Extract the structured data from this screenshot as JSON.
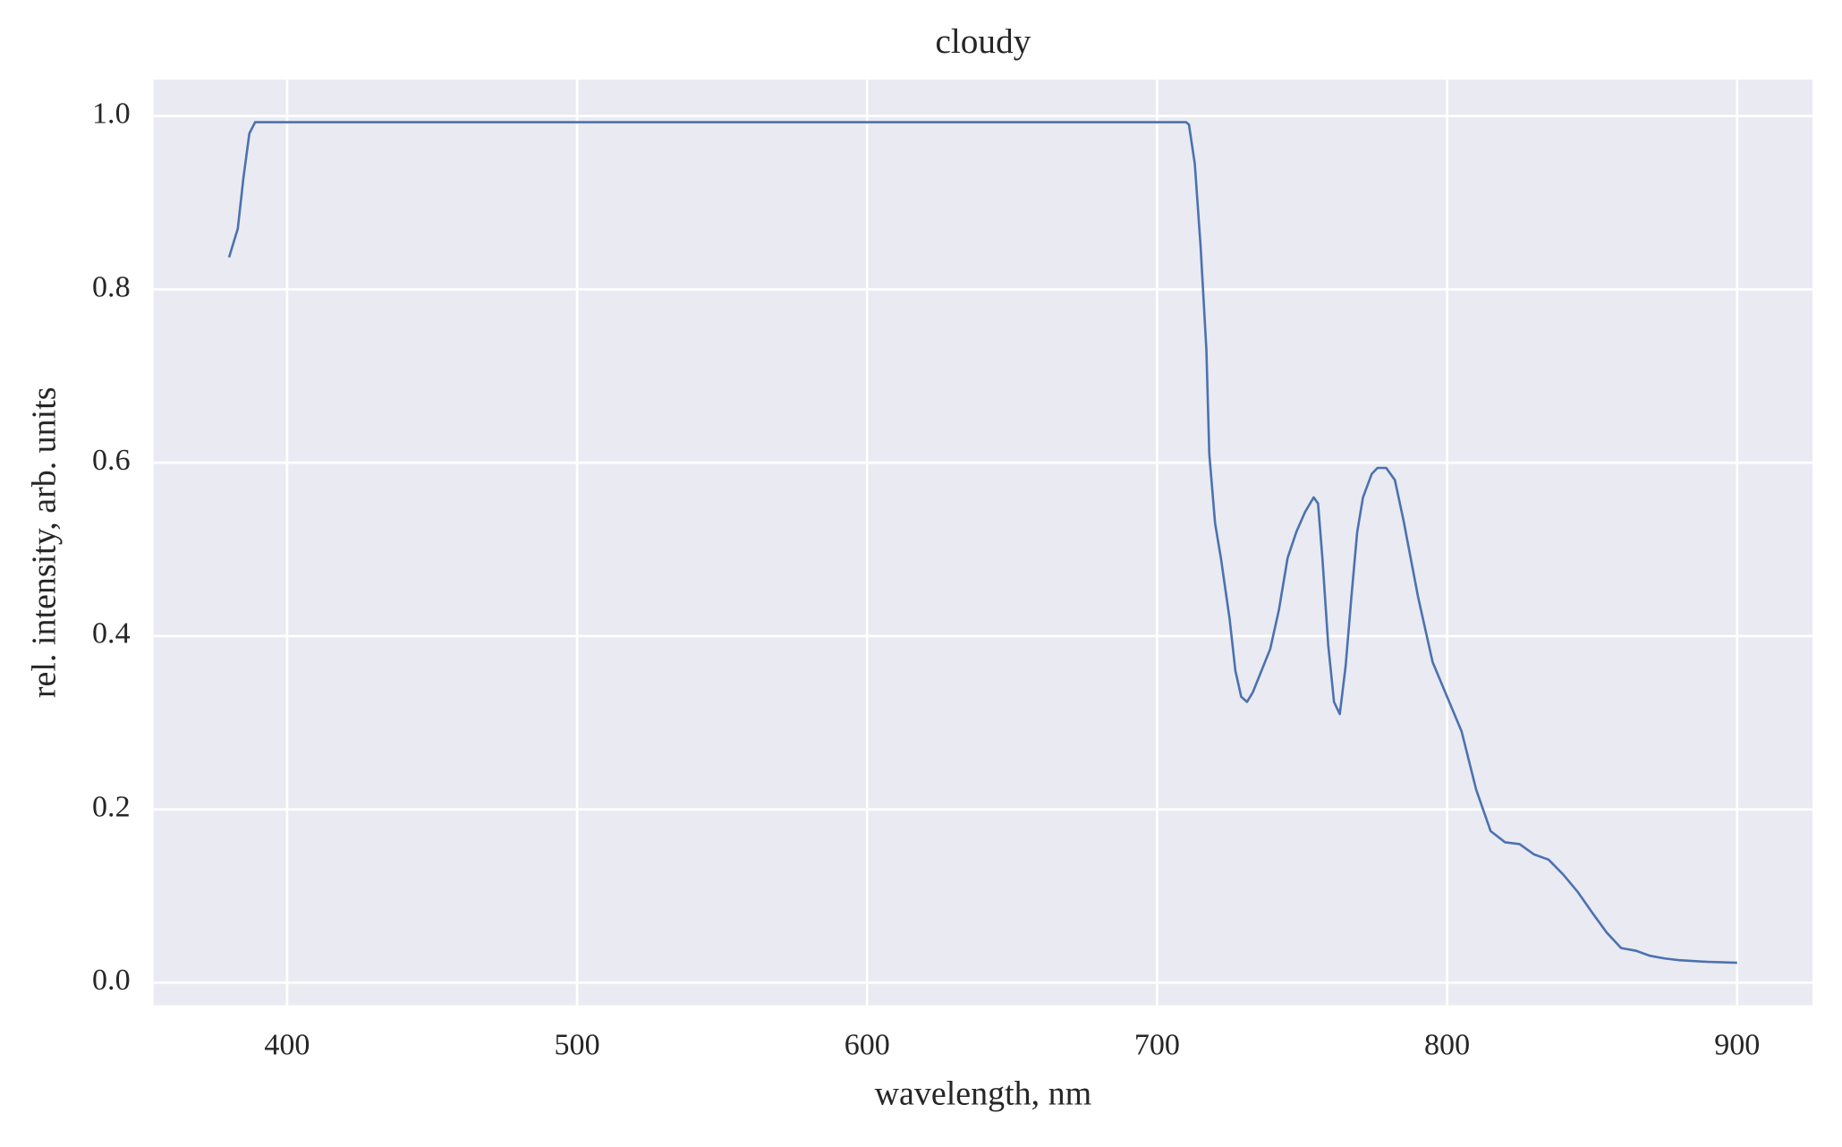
{
  "chart_data": {
    "type": "line",
    "title": "cloudy",
    "x_label": "wavelength, nm",
    "y_label": "rel. intensity, arb. units",
    "x": [
      380,
      383,
      385,
      387,
      389,
      390,
      710,
      711,
      713,
      715,
      717,
      718,
      720,
      722,
      725,
      727,
      729,
      731,
      733,
      736,
      739,
      742,
      745,
      748,
      751,
      754,
      755.5,
      757,
      759,
      761,
      763,
      765,
      767,
      769,
      771,
      774,
      776,
      779,
      782,
      785,
      790,
      795,
      800,
      805,
      810,
      815,
      820,
      825,
      830,
      835,
      840,
      845,
      850,
      855,
      860,
      865,
      870,
      875,
      880,
      890,
      900
    ],
    "series": [
      {
        "name": "cloudy",
        "color": "#4c72b0",
        "values": [
          0.837,
          0.87,
          0.93,
          0.98,
          0.993,
          0.993,
          0.993,
          0.99,
          0.945,
          0.85,
          0.73,
          0.61,
          0.53,
          0.49,
          0.42,
          0.36,
          0.33,
          0.324,
          0.335,
          0.36,
          0.385,
          0.43,
          0.49,
          0.52,
          0.543,
          0.56,
          0.553,
          0.49,
          0.39,
          0.324,
          0.31,
          0.365,
          0.445,
          0.52,
          0.56,
          0.587,
          0.594,
          0.594,
          0.58,
          0.533,
          0.445,
          0.37,
          0.33,
          0.29,
          0.223,
          0.175,
          0.162,
          0.16,
          0.148,
          0.142,
          0.125,
          0.105,
          0.081,
          0.058,
          0.04,
          0.037,
          0.031,
          0.028,
          0.026,
          0.024,
          0.023
        ]
      }
    ],
    "xlim": [
      354,
      926
    ],
    "ylim": [
      -0.026,
      1.042
    ],
    "xticks": [
      400,
      500,
      600,
      700,
      800,
      900
    ],
    "yticks": [
      {
        "value": 0,
        "label": "0.0"
      },
      0.2,
      0.4,
      0.6,
      0.8,
      {
        "value": 1,
        "label": "1.0"
      }
    ],
    "grid": true,
    "background": "#eaeaf2"
  }
}
